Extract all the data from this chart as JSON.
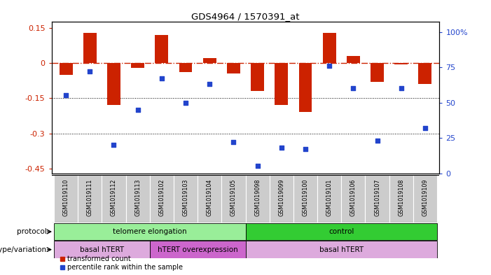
{
  "title": "GDS4964 / 1570391_at",
  "samples": [
    "GSM1019110",
    "GSM1019111",
    "GSM1019112",
    "GSM1019113",
    "GSM1019102",
    "GSM1019103",
    "GSM1019104",
    "GSM1019105",
    "GSM1019098",
    "GSM1019099",
    "GSM1019100",
    "GSM1019101",
    "GSM1019106",
    "GSM1019107",
    "GSM1019108",
    "GSM1019109"
  ],
  "bar_values": [
    -0.05,
    0.13,
    -0.18,
    -0.02,
    0.12,
    -0.04,
    0.02,
    -0.045,
    -0.12,
    -0.18,
    -0.21,
    0.13,
    0.03,
    -0.08,
    -0.005,
    -0.09
  ],
  "dot_values": [
    55,
    72,
    20,
    45,
    67,
    50,
    63,
    22,
    5,
    18,
    17,
    76,
    60,
    23,
    60,
    32
  ],
  "ylim_left": [
    -0.47,
    0.175
  ],
  "ylim_right": [
    0,
    107
  ],
  "yticks_left": [
    0.15,
    0,
    -0.15,
    -0.3,
    -0.45
  ],
  "ytick_labels_left": [
    "0.15",
    "0",
    "-0.15",
    "-0.3",
    "-0.45"
  ],
  "yticks_right": [
    100,
    75,
    50,
    25,
    0
  ],
  "ytick_labels_right": [
    "100%",
    "75",
    "50",
    "25",
    "0"
  ],
  "bar_color": "#cc2200",
  "dot_color": "#2244cc",
  "zero_line_color": "#cc2200",
  "grid_line_color": "#000000",
  "protocol_labels": [
    {
      "text": "telomere elongation",
      "start": 0,
      "end": 7,
      "color": "#99ee99"
    },
    {
      "text": "control",
      "start": 8,
      "end": 15,
      "color": "#33cc33"
    }
  ],
  "genotype_labels": [
    {
      "text": "basal hTERT",
      "start": 0,
      "end": 3,
      "color": "#ddaadd"
    },
    {
      "text": "hTERT overexpression",
      "start": 4,
      "end": 7,
      "color": "#cc66cc"
    },
    {
      "text": "basal hTERT",
      "start": 8,
      "end": 15,
      "color": "#ddaadd"
    }
  ],
  "protocol_row_label": "protocol",
  "genotype_row_label": "genotype/variation",
  "legend_bar_label": "transformed count",
  "legend_dot_label": "percentile rank within the sample",
  "bg_color": "#ffffff",
  "plot_bg_color": "#ffffff",
  "sample_cell_color": "#cccccc"
}
